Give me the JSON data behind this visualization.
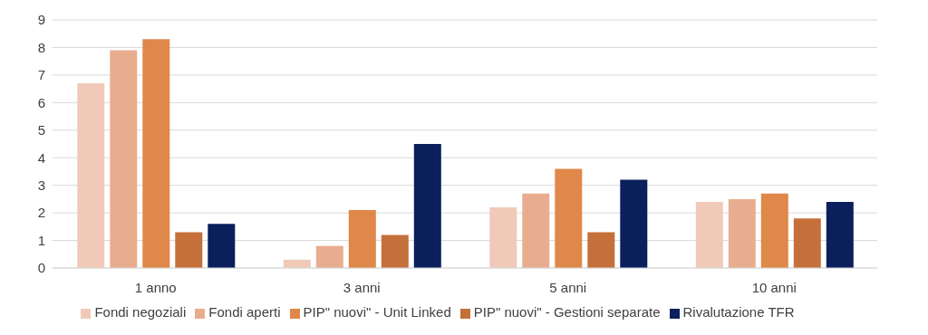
{
  "chart_data": {
    "type": "bar",
    "categories": [
      "1 anno",
      "3 anni",
      "5 anni",
      "10 anni"
    ],
    "series": [
      {
        "name": "Fondi negoziali",
        "color": "#f0c9b8",
        "values": [
          6.7,
          0.3,
          2.2,
          2.4
        ]
      },
      {
        "name": "Fondi aperti",
        "color": "#e8ad8f",
        "values": [
          7.9,
          0.8,
          2.7,
          2.5
        ]
      },
      {
        "name": "PIP\" nuovi\" - Unit Linked",
        "color": "#e0874a",
        "values": [
          8.3,
          2.1,
          3.6,
          2.7
        ]
      },
      {
        "name": "PIP\" nuovi\" - Gestioni separate",
        "color": "#c5703a",
        "values": [
          1.3,
          1.2,
          1.3,
          1.8
        ]
      },
      {
        "name": "Rivalutazione TFR",
        "color": "#0b1f5c",
        "values": [
          1.6,
          4.5,
          3.2,
          2.4
        ]
      }
    ],
    "ylim": [
      0,
      9
    ],
    "yticks": [
      0,
      1,
      2,
      3,
      4,
      5,
      6,
      7,
      8,
      9
    ],
    "grid": "y",
    "legend": "bottom"
  }
}
